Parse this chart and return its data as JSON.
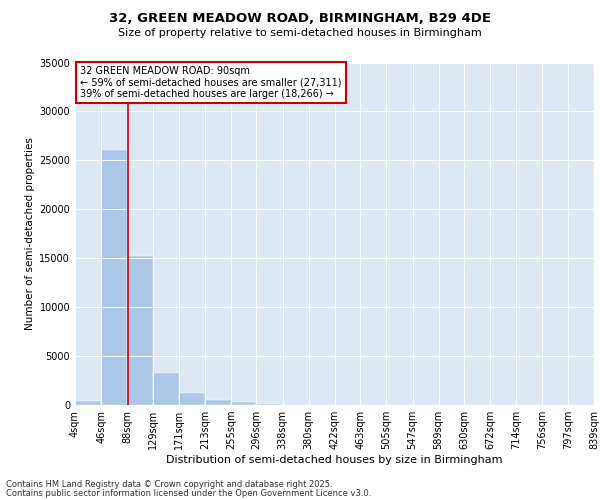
{
  "title_line1": "32, GREEN MEADOW ROAD, BIRMINGHAM, B29 4DE",
  "title_line2": "Size of property relative to semi-detached houses in Birmingham",
  "xlabel": "Distribution of semi-detached houses by size in Birmingham",
  "ylabel": "Number of semi-detached properties",
  "footnote_line1": "Contains HM Land Registry data © Crown copyright and database right 2025.",
  "footnote_line2": "Contains public sector information licensed under the Open Government Licence v3.0.",
  "annotation_line1": "32 GREEN MEADOW ROAD: 90sqm",
  "annotation_line2": "← 59% of semi-detached houses are smaller (27,311)",
  "annotation_line3": "39% of semi-detached houses are larger (18,266) →",
  "property_size": 90,
  "bar_color": "#aec6e8",
  "vline_color": "#cc0000",
  "annotation_box_color": "#cc0000",
  "background_color": "#dce9f5",
  "ylim": [
    0,
    35000
  ],
  "yticks": [
    0,
    5000,
    10000,
    15000,
    20000,
    25000,
    30000,
    35000
  ],
  "bin_labels": [
    "4sqm",
    "46sqm",
    "88sqm",
    "129sqm",
    "171sqm",
    "213sqm",
    "255sqm",
    "296sqm",
    "338sqm",
    "380sqm",
    "422sqm",
    "463sqm",
    "505sqm",
    "547sqm",
    "589sqm",
    "630sqm",
    "672sqm",
    "714sqm",
    "756sqm",
    "797sqm",
    "839sqm"
  ],
  "bin_edges": [
    4,
    46,
    88,
    129,
    171,
    213,
    255,
    296,
    338,
    380,
    422,
    463,
    505,
    547,
    589,
    630,
    672,
    714,
    756,
    797,
    839
  ],
  "bar_heights": [
    400,
    26100,
    15200,
    3300,
    1200,
    500,
    300,
    100,
    0,
    0,
    0,
    0,
    0,
    0,
    0,
    0,
    0,
    0,
    0,
    0
  ]
}
